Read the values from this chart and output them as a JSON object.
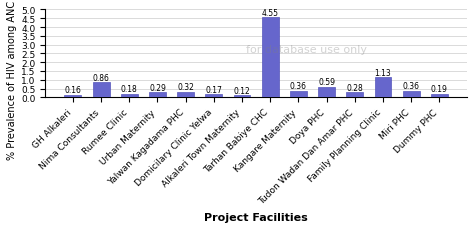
{
  "categories": [
    "GH Alkaleri",
    "Nima Consultants",
    "Rumee Clinic",
    "Urban Maternity",
    "Yalwan Kagadama PHC",
    "Domicilary Clinic Yelwa",
    "Alkaleri Town Maternity",
    "Tarhan Babiye CHC",
    "Kangare Maternity",
    "Doya PHC",
    "Tudon Wadan Dan Amar PHC",
    "Family Planning Clinic",
    "Miri PHC",
    "Dummy PHC"
  ],
  "values": [
    0.16,
    0.86,
    0.18,
    0.29,
    0.32,
    0.17,
    0.12,
    4.55,
    0.36,
    0.59,
    0.28,
    1.13,
    0.36,
    0.19
  ],
  "bar_color": "#6666cc",
  "bar_edge_color": "#5555bb",
  "ylabel": "% Prevalence of HIV among ANC attendees",
  "xlabel": "Project Facilities",
  "ylim": [
    0,
    5
  ],
  "yticks": [
    0,
    0.5,
    1,
    1.5,
    2,
    2.5,
    3,
    3.5,
    4,
    4.5,
    5
  ],
  "title": "",
  "bar_width": 0.6,
  "figure_bg": "#ffffff",
  "axes_bg": "#ffffff",
  "label_fontsize": 7,
  "tick_fontsize": 6.5,
  "value_fontsize": 5.5
}
